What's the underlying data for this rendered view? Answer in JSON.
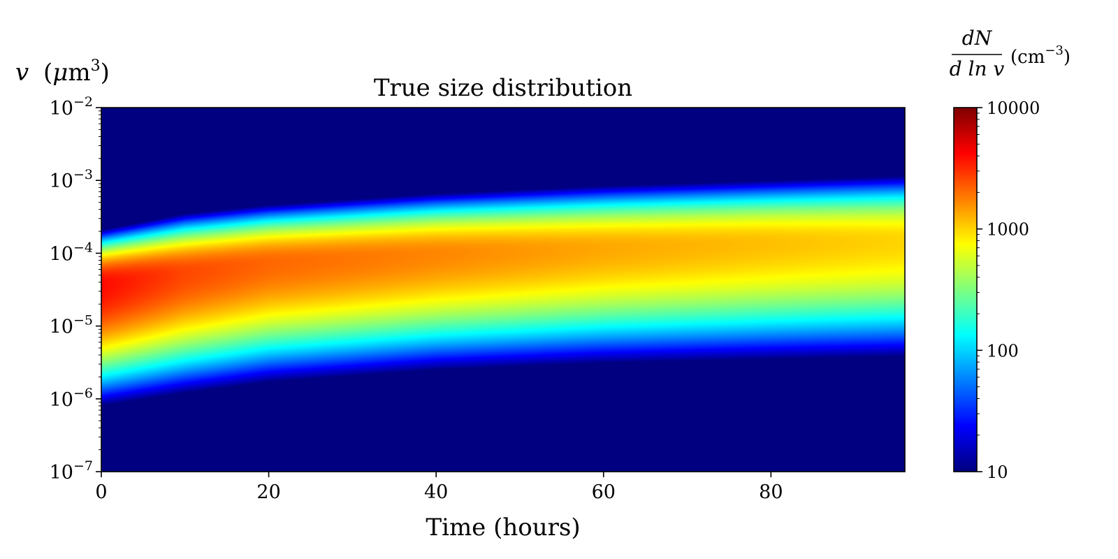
{
  "chart_data": {
    "type": "heatmap",
    "title": "True size distribution",
    "xlabel": "Time (hours)",
    "ylabel": {
      "variable": "v",
      "unit_prefix": "(",
      "unit_mu": "μ",
      "unit_base": "m",
      "unit_exp": "3",
      "unit_suffix": ")"
    },
    "xlim": [
      0,
      96
    ],
    "ylim": [
      1e-07,
      0.01
    ],
    "yscale": "log",
    "xticks": [
      {
        "value": 0,
        "label": "0"
      },
      {
        "value": 20,
        "label": "20"
      },
      {
        "value": 40,
        "label": "40"
      },
      {
        "value": 60,
        "label": "60"
      },
      {
        "value": 80,
        "label": "80"
      }
    ],
    "yticks": [
      {
        "value": 1e-07,
        "base": "10",
        "exp": "−7"
      },
      {
        "value": 1e-06,
        "base": "10",
        "exp": "−6"
      },
      {
        "value": 1e-05,
        "base": "10",
        "exp": "−5"
      },
      {
        "value": 0.0001,
        "base": "10",
        "exp": "−4"
      },
      {
        "value": 0.001,
        "base": "10",
        "exp": "−3"
      },
      {
        "value": 0.01,
        "base": "10",
        "exp": "−2"
      }
    ],
    "colorbar": {
      "label_num": "dN",
      "label_den": "d ln v",
      "label_unit": "(cm",
      "label_unit_exp": "−3",
      "label_unit_close": ")",
      "scale": "log",
      "colormap": "jet",
      "range": [
        10,
        10000
      ],
      "ticks": [
        {
          "value": 10,
          "label": "10"
        },
        {
          "value": 100,
          "label": "100"
        },
        {
          "value": 1000,
          "label": "1000"
        },
        {
          "value": 10000,
          "label": "10000"
        }
      ]
    },
    "distribution": {
      "description": "lognormal modes in v",
      "samples": [
        {
          "time": 0,
          "peak_v": 3.8e-05,
          "peak_dndlnv": 4000,
          "v_lower_10": 8e-07,
          "v_upper_10": 0.00021
        },
        {
          "time": 10,
          "peak_v": 5.5e-05,
          "peak_dndlnv": 2600,
          "v_lower_10": 1.2e-06,
          "v_upper_10": 0.00035
        },
        {
          "time": 20,
          "peak_v": 7.5e-05,
          "peak_dndlnv": 2100,
          "v_lower_10": 1.7e-06,
          "v_upper_10": 0.00046
        },
        {
          "time": 40,
          "peak_v": 0.0001,
          "peak_dndlnv": 1700,
          "v_lower_10": 2.5e-06,
          "v_upper_10": 0.00066
        },
        {
          "time": 60,
          "peak_v": 0.00012,
          "peak_dndlnv": 1350,
          "v_lower_10": 3.1e-06,
          "v_upper_10": 0.00084
        },
        {
          "time": 80,
          "peak_v": 0.00014,
          "peak_dndlnv": 1150,
          "v_lower_10": 3.5e-06,
          "v_upper_10": 0.001
        },
        {
          "time": 96,
          "peak_v": 0.00015,
          "peak_dndlnv": 1000,
          "v_lower_10": 3.8e-06,
          "v_upper_10": 0.00115
        }
      ]
    },
    "background_color": "#00007f"
  }
}
